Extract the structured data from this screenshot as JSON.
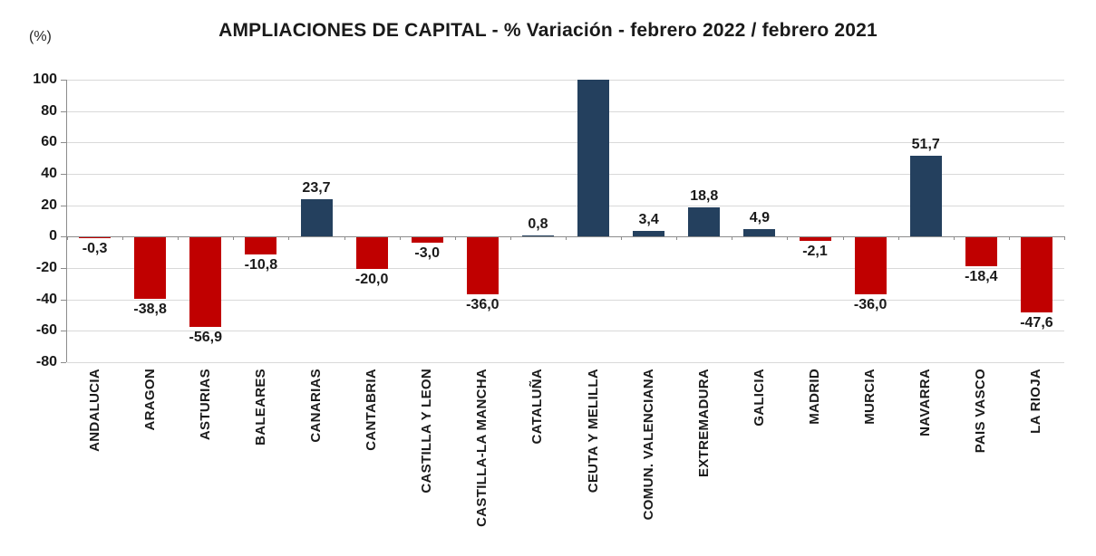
{
  "chart": {
    "title": "AMPLIACIONES DE CAPITAL - % Variación - febrero 2022 / febrero 2021",
    "unit_label": "(%)"
  },
  "chart_data": {
    "type": "bar",
    "title": "AMPLIACIONES DE CAPITAL - % Variación - febrero 2022 / febrero 2021",
    "xlabel": "",
    "ylabel": "(%)",
    "ylim": [
      -80,
      100
    ],
    "y_ticks": [
      100,
      80,
      60,
      40,
      20,
      0,
      -20,
      -40,
      -60,
      -80
    ],
    "grid": true,
    "legend": false,
    "categories": [
      "ANDALUCIA",
      "ARAGON",
      "ASTURIAS",
      "BALEARES",
      "CANARIAS",
      "CANTABRIA",
      "CASTILLA Y LEON",
      "CASTILLA-LA MANCHA",
      "CATALUÑA",
      "CEUTA Y MELILLA",
      "COMUN. VALENCIANA",
      "EXTREMADURA",
      "GALICIA",
      "MADRID",
      "MURCIA",
      "NAVARRA",
      "PAIS VASCO",
      "LA RIOJA"
    ],
    "values": [
      -0.3,
      -38.8,
      -56.9,
      -10.8,
      23.7,
      -20.0,
      -3.0,
      -36.0,
      0.8,
      100,
      3.4,
      18.8,
      4.9,
      -2.1,
      -36.0,
      51.7,
      -18.4,
      -47.6
    ],
    "data_labels": [
      "-0,3",
      "-38,8",
      "-56,9",
      "-10,8",
      "23,7",
      "-20,0",
      "-3,0",
      "-36,0",
      "0,8",
      "",
      "3,4",
      "18,8",
      "4,9",
      "-2,1",
      "-36,0",
      "51,7",
      "-18,4",
      "-47,6"
    ],
    "colors": {
      "positive_bar": "#24405E",
      "negative_bar": "#C00000",
      "gridline": "#D9D9D9",
      "axis": "#8C8C8C",
      "text": "#1A1A1A"
    }
  }
}
